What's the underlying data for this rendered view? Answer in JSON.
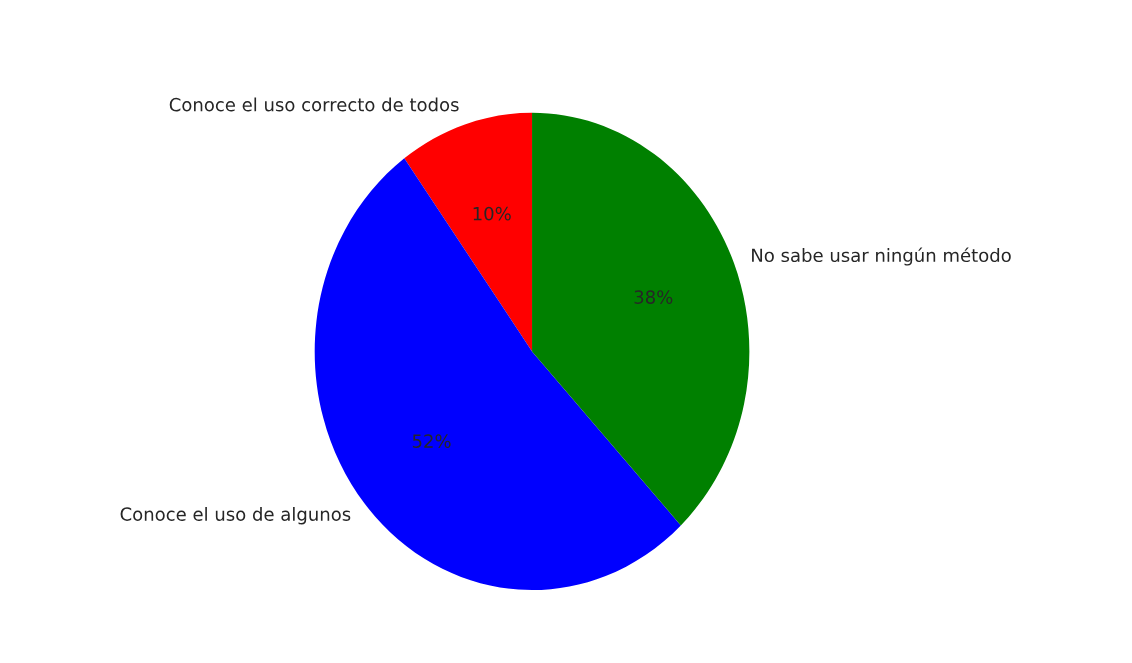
{
  "chart_data": {
    "type": "pie",
    "categories": [
      "Conoce el uso correcto de todos",
      "Conoce el uso de algunos",
      "No sabe usar ningún método"
    ],
    "values": [
      10,
      52,
      38
    ],
    "value_labels": [
      "10%",
      "52%",
      "38%"
    ],
    "colors": [
      "#ff0000",
      "#0000ff",
      "#008000"
    ]
  }
}
